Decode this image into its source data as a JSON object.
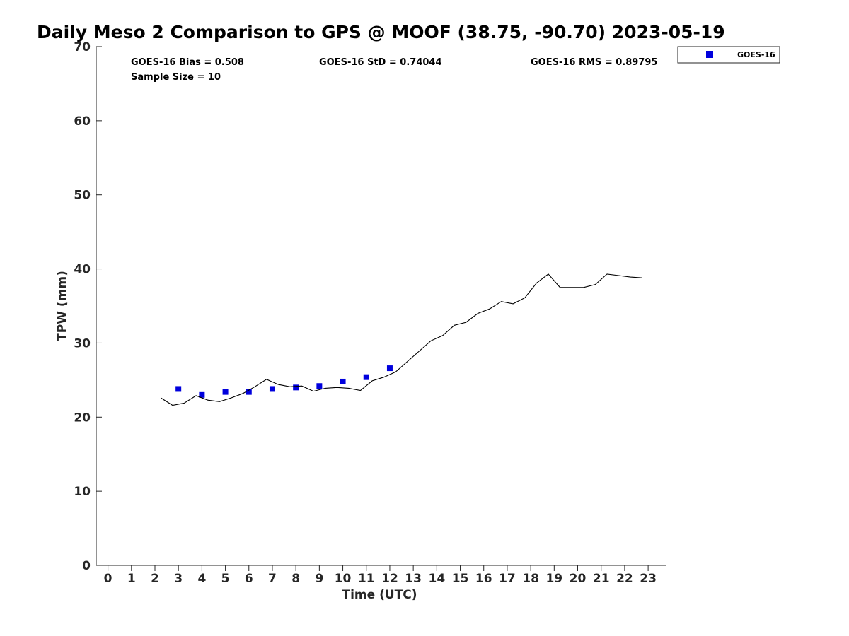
{
  "chart_data": {
    "type": "scatter",
    "title": "Daily Meso 2 Comparison to GPS @ MOOF (38.75, -90.70) 2023-05-19",
    "xlabel": "Time (UTC)",
    "ylabel": "TPW (mm)",
    "xlim": [
      -0.5,
      23.75
    ],
    "ylim": [
      0,
      70
    ],
    "xticks": [
      0,
      1,
      2,
      3,
      4,
      5,
      6,
      7,
      8,
      9,
      10,
      11,
      12,
      13,
      14,
      15,
      16,
      17,
      18,
      19,
      20,
      21,
      22,
      23
    ],
    "yticks": [
      0,
      10,
      20,
      30,
      40,
      50,
      60,
      70
    ],
    "grid": false,
    "legend_position": "top-right",
    "stats": {
      "bias": "GOES-16 Bias = 0.508",
      "std": "GOES-16 StD = 0.74044",
      "rms": "GOES-16 RMS = 0.89795",
      "sample_size": "Sample Size = 10"
    },
    "series": [
      {
        "name": "GOES-16",
        "marker": "square",
        "color": "#0000dd",
        "x": [
          3,
          4,
          5,
          6,
          7,
          8,
          9,
          10,
          11,
          12
        ],
        "y": [
          23.8,
          23.0,
          23.4,
          23.4,
          23.8,
          24.0,
          24.2,
          24.8,
          25.4,
          26.6
        ]
      },
      {
        "line_only": true,
        "color": "#000000",
        "x": [
          2.25,
          2.75,
          3.25,
          3.75,
          4.25,
          4.75,
          5.25,
          5.75,
          6.25,
          6.75,
          7.25,
          7.75,
          8.25,
          8.75,
          9.25,
          9.75,
          10.25,
          10.75,
          11.25,
          11.75,
          12.25,
          12.75,
          13.25,
          13.75,
          14.25,
          14.75,
          15.25,
          15.75,
          16.25,
          16.75,
          17.25,
          17.75,
          18.25,
          18.75,
          19.25,
          19.75,
          20.25,
          20.75,
          21.25,
          21.75,
          22.25,
          22.75
        ],
        "y": [
          22.6,
          21.6,
          21.9,
          22.9,
          22.3,
          22.1,
          22.6,
          23.2,
          24.1,
          25.1,
          24.4,
          24.1,
          24.2,
          23.5,
          23.9,
          24.0,
          23.9,
          23.6,
          24.9,
          25.4,
          26.1,
          27.5,
          28.9,
          30.3,
          31.0,
          32.4,
          32.8,
          34.0,
          34.6,
          35.6,
          35.3,
          36.1,
          38.1,
          39.3,
          37.5,
          37.5,
          37.5,
          37.9,
          39.3,
          39.1,
          38.9,
          38.8
        ]
      }
    ]
  },
  "colors": {
    "axis": "#262626",
    "marker": "#0000dd",
    "line": "#000000"
  }
}
